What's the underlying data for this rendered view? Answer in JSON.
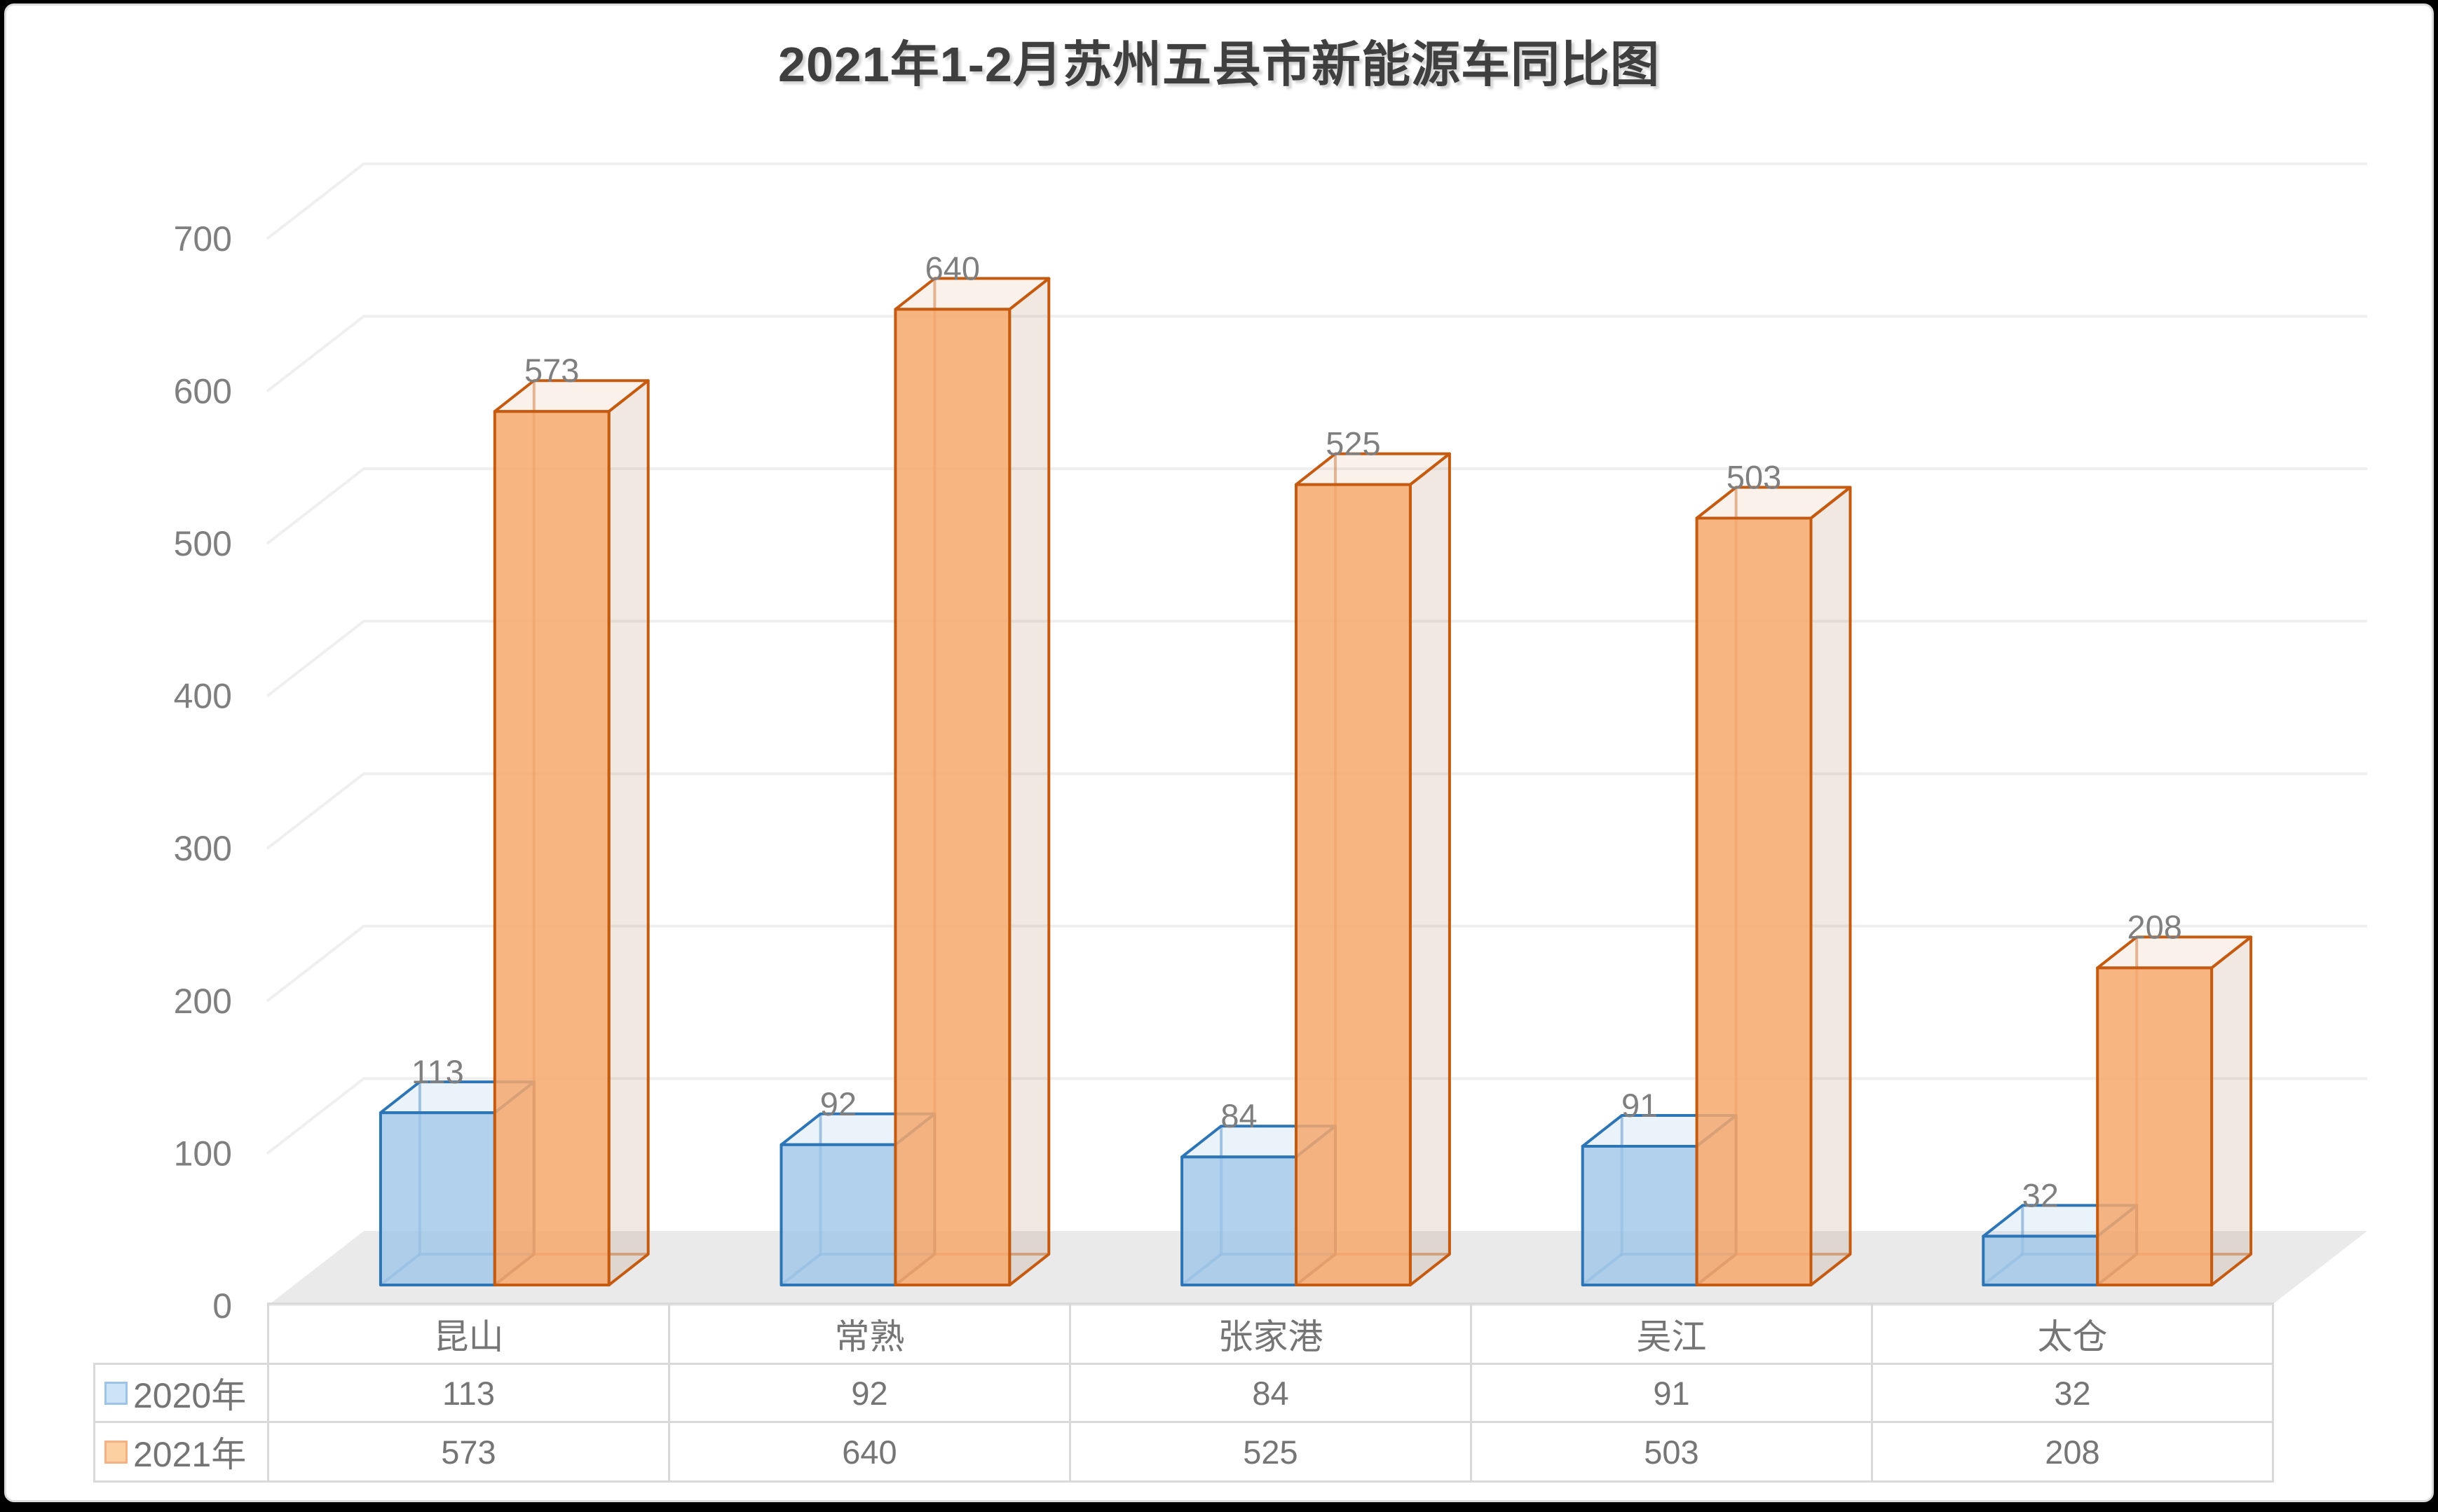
{
  "title": {
    "text": "2021年1-2月苏州五县市新能源车同比图",
    "color": "#3f3f3f"
  },
  "chart_data": {
    "type": "bar",
    "subtype": "3d-clustered-column",
    "title": "2021年1-2月苏州五县市新能源车同比图",
    "categories": [
      "昆山",
      "常熟",
      "张家港",
      "吴江",
      "太仓"
    ],
    "series": [
      {
        "name": "2020年",
        "values": [
          113,
          92,
          84,
          91,
          32
        ],
        "edge_color": "#2E75B6",
        "front_fill": "rgba(158,197,232,0.80)",
        "top_fill": "rgba(158,197,232,0.22)",
        "side_fill": "rgba(120,150,180,0.22)",
        "legend_fill": "#CDE4F7",
        "legend_edge": "#9DC3E6"
      },
      {
        "name": "2021年",
        "values": [
          573,
          640,
          525,
          503,
          208
        ],
        "edge_color": "#C55A11",
        "front_fill": "rgba(246,168,108,0.85)",
        "top_fill": "rgba(222,170,130,0.16)",
        "side_fill": "rgba(180,130,95,0.18)",
        "legend_fill": "#FCD0A0",
        "legend_edge": "#F4B183"
      }
    ],
    "ylim": [
      0,
      700
    ],
    "yticks": [
      0,
      100,
      200,
      300,
      400,
      500,
      600,
      700
    ],
    "grid": true,
    "data_labels": true,
    "legend_position": "data-table",
    "axis_label_color": "#7f7f7f",
    "data_label_color": "#7f7f7f",
    "gridline_color": "#efefef",
    "floor_color": "#eaeaea",
    "table_border_color": "#d9d9d9",
    "table_text_color": "#757575"
  }
}
